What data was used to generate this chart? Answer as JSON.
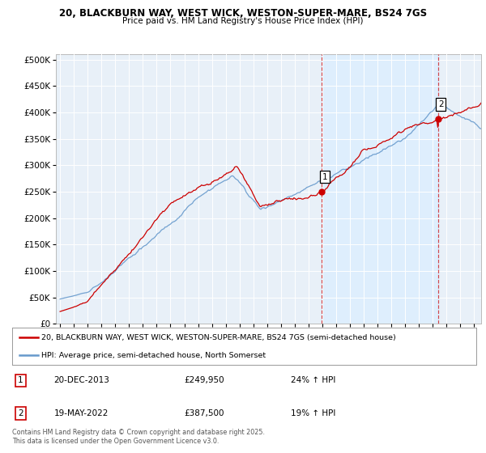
{
  "title1": "20, BLACKBURN WAY, WEST WICK, WESTON-SUPER-MARE, BS24 7GS",
  "title2": "Price paid vs. HM Land Registry's House Price Index (HPI)",
  "legend_line1": "20, BLACKBURN WAY, WEST WICK, WESTON-SUPER-MARE, BS24 7GS (semi-detached house)",
  "legend_line2": "HPI: Average price, semi-detached house, North Somerset",
  "annotation1_date": "20-DEC-2013",
  "annotation1_price": "£249,950",
  "annotation1_change": "24% ↑ HPI",
  "annotation2_date": "19-MAY-2022",
  "annotation2_price": "£387,500",
  "annotation2_change": "19% ↑ HPI",
  "sale1_x": 2013.97,
  "sale1_y": 249950,
  "sale2_x": 2022.38,
  "sale2_y": 387500,
  "ylim": [
    0,
    510000
  ],
  "xlim_start": 1994.7,
  "xlim_end": 2025.5,
  "yticks": [
    0,
    50000,
    100000,
    150000,
    200000,
    250000,
    300000,
    350000,
    400000,
    450000,
    500000
  ],
  "xticks": [
    1995,
    1996,
    1997,
    1998,
    1999,
    2000,
    2001,
    2002,
    2003,
    2004,
    2005,
    2006,
    2007,
    2008,
    2009,
    2010,
    2011,
    2012,
    2013,
    2014,
    2015,
    2016,
    2017,
    2018,
    2019,
    2020,
    2021,
    2022,
    2023,
    2024,
    2025
  ],
  "red_color": "#cc0000",
  "blue_color": "#6699cc",
  "shade_color": "#ddeeff",
  "plot_bg": "#e8f0f8",
  "footer": "Contains HM Land Registry data © Crown copyright and database right 2025.\nThis data is licensed under the Open Government Licence v3.0."
}
